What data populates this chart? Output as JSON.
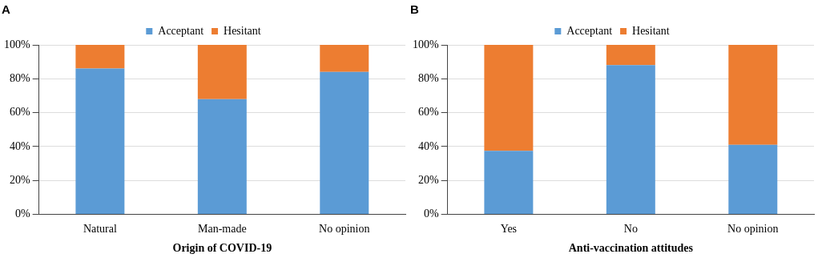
{
  "chart_data": [
    {
      "type": "bar",
      "title": "A",
      "xlabel": "Origin of COVID-19",
      "categories": [
        "Natural",
        "Man-made",
        "No opinion"
      ],
      "stacked": true,
      "legend": "top",
      "grid": "y",
      "ylim": [
        0,
        100
      ],
      "yticks": [
        {
          "value": 0,
          "label": "0%"
        },
        {
          "value": 20,
          "label": "20%"
        },
        {
          "value": 40,
          "label": "40%"
        },
        {
          "value": 60,
          "label": "60%"
        },
        {
          "value": 80,
          "label": "80%"
        },
        {
          "value": 100,
          "label": "100%"
        }
      ],
      "series": [
        {
          "name": "Acceptant",
          "color": "#5b9bd5",
          "values": [
            86,
            68,
            84
          ]
        },
        {
          "name": "Hesitant",
          "color": "#ed7d31",
          "values": [
            14,
            32,
            16
          ]
        }
      ]
    },
    {
      "type": "bar",
      "title": "B",
      "xlabel": "Anti-vaccination attitudes",
      "categories": [
        "Yes",
        "No",
        "No opinion"
      ],
      "stacked": true,
      "legend": "top",
      "grid": "y",
      "ylim": [
        0,
        100
      ],
      "yticks": [
        {
          "value": 0,
          "label": "0%"
        },
        {
          "value": 20,
          "label": "20%"
        },
        {
          "value": 40,
          "label": "40%"
        },
        {
          "value": 60,
          "label": "60%"
        },
        {
          "value": 80,
          "label": "80%"
        },
        {
          "value": 100,
          "label": "100%"
        }
      ],
      "series": [
        {
          "name": "Acceptant",
          "color": "#5b9bd5",
          "values": [
            37.5,
            88,
            41
          ]
        },
        {
          "name": "Hesitant",
          "color": "#ed7d31",
          "values": [
            62.5,
            12,
            59
          ]
        }
      ]
    }
  ]
}
